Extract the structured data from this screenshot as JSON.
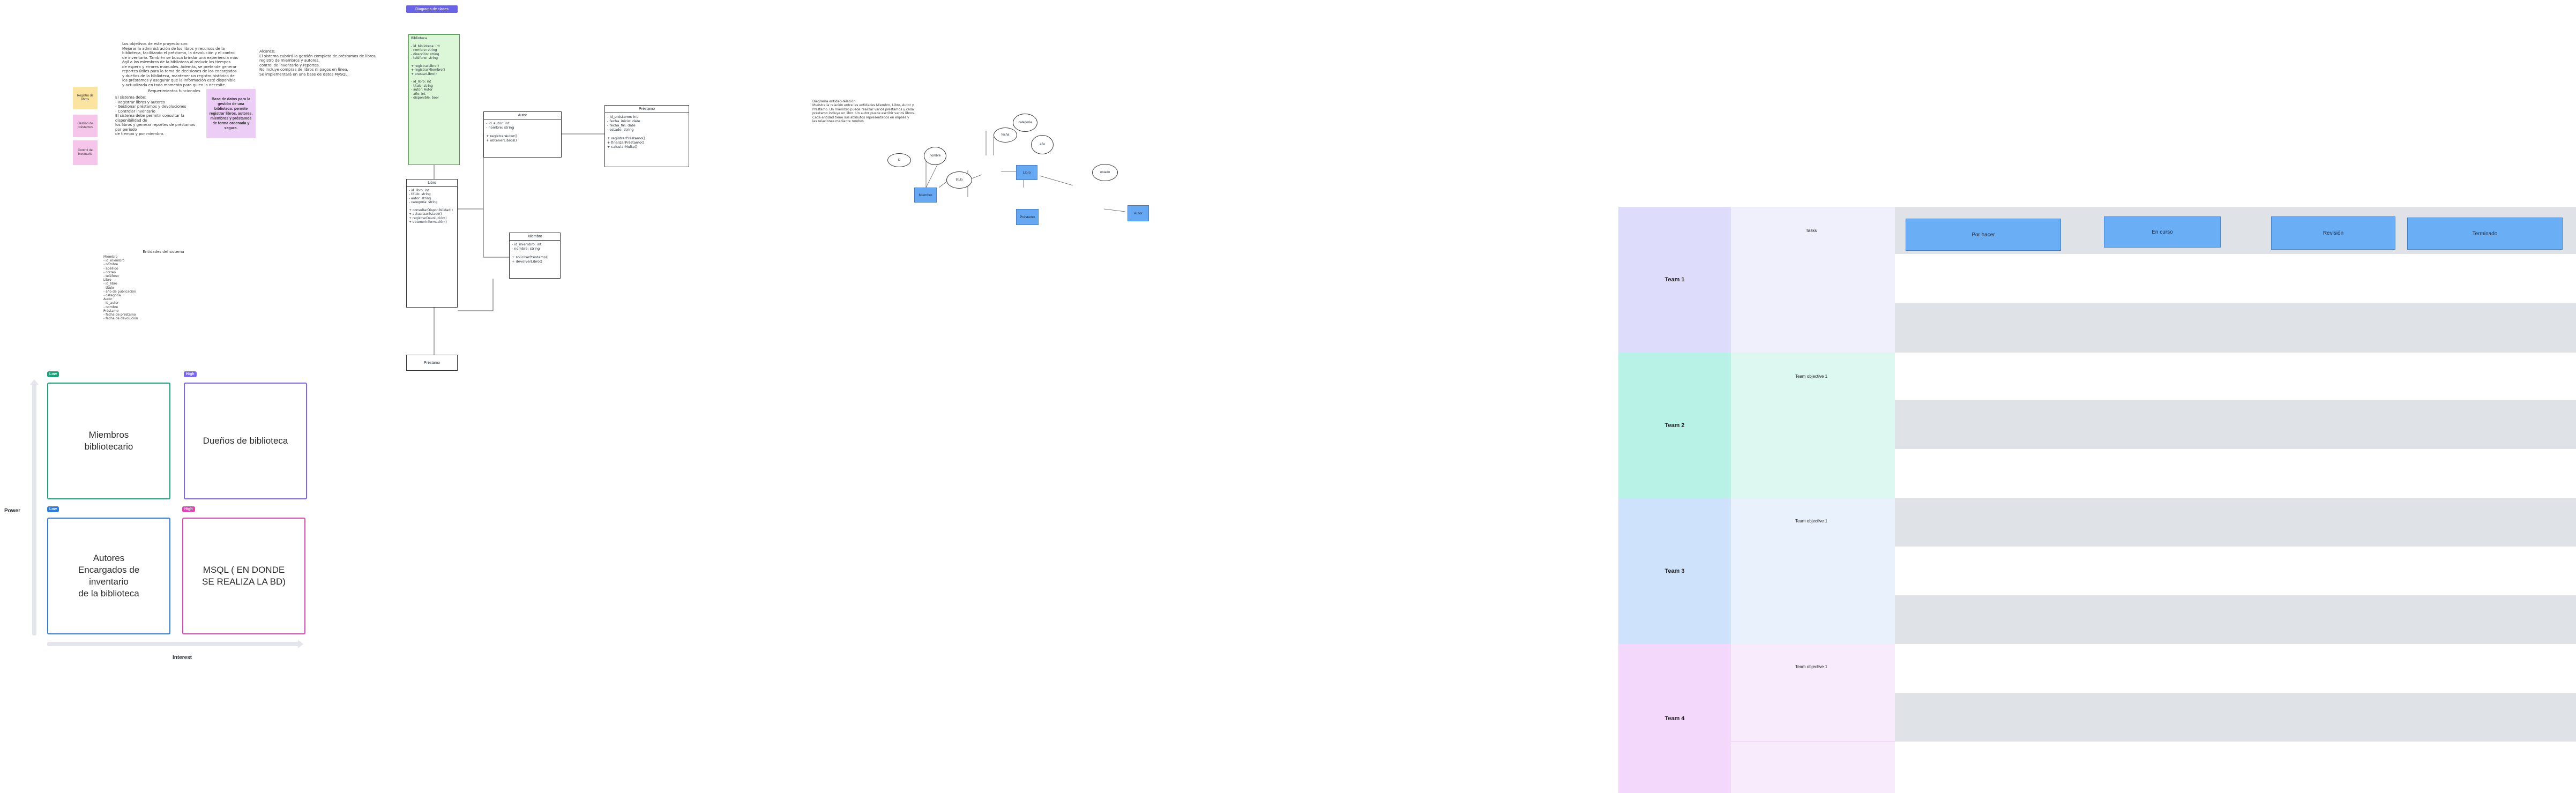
{
  "notes": {
    "intro": "Los objetivos de este proyecto son:\nMejorar la administración de los libros y recursos de la\nbiblioteca, facilitando el préstamo, la devolución y el control\nde inventario. También se busca brindar una experiencia más\nágil a los miembros de la biblioteca al reducir los tiempos\nde espera y errores manuales. Además, se pretende generar\nreportes útiles para la toma de decisiones de los encargados\ny dueños de la biblioteca, mantener un registro histórico de\nlos préstamos y asegurar que la información esté disponible\ny actualizada en todo momento para quien la necesite.",
    "requirements_title": "Requerimientos funcionales",
    "requirements": "El sistema debe:\n- Registrar libros y autores\n- Gestionar préstamos y devoluciones\n- Controlar inventario\nEl sistema debe permitir consultar la disponibilidad de\nlos libros y generar reportes de préstamos por periodo\nde tiempo y por miembro.",
    "scope": "Alcance:\nEl sistema cubrirá la gestión completa de préstamos de libros,\nregistro de miembros y autores,\ncontrol de inventario y reportes.\nNo incluye compras de libros ni pagos en línea.\nSe implementará en una base de datos MySQL.",
    "list_title": "Entidades del sistema",
    "list": "Miembro\n- id_miembro\n- nombre\n- apellido\n- correo\n- teléfono\nLibro\n- id_libro\n- título\n- año de publicación\n- categoría\nAutor\n- id_autor\n- nombre\nPréstamo\n- fecha de préstamo\n- fecha de devolución"
  },
  "stickies": [
    {
      "text": "Registro de libros",
      "color": "#fbe3a0"
    },
    {
      "text": "Gestión de préstamos",
      "color": "#f5c6ea"
    },
    {
      "text": "Control de inventario",
      "color": "#f5c6ea"
    }
  ],
  "callout": {
    "text": "Base de datos para la gestión de una biblioteca: permite registrar libros, autores, miembros y préstamos de forma ordenada y segura.",
    "color": "#eccdf6"
  },
  "stakeholders": {
    "y_axis": "Power",
    "x_axis": "Interest",
    "quadrants": [
      {
        "badge": "Low",
        "text": "Miembros\nbibliotecario",
        "color": "#18a37a"
      },
      {
        "badge": "High",
        "text": "Dueños de biblioteca",
        "color": "#7b68ee"
      },
      {
        "badge": "Low",
        "text": "Autores\nEncargados de\ninventario\nde la biblioteca",
        "color": "#2f7de1"
      },
      {
        "badge": "High",
        "text": "MSQL ( EN DONDE\nSE REALIZA LA BD)",
        "color": "#e344b5"
      }
    ]
  },
  "diagram": {
    "title_button": "Diagrama de clases",
    "green_box": "Biblioteca\n\n- id_biblioteca: int\n- nombre: string\n- dirección: string\n- teléfono: string\n\n+ registrarLibro()\n+ registrarMiembro()\n+ prestarLibro()\n\n- id_libro: int\n- título: string\n- autor: Autor\n- año: int\n- disponible: bool",
    "left_box_title": "Libro",
    "left_box": "- id_libro: int\n- título: string\n- autor: string\n- categoría: string\n\n+ consultarDisponibilidad()\n+ actualizarEstado()\n+ registrarDevolución()\n+ obtenerInformación()",
    "bottom_box": "Préstamo",
    "class_a_title": "Autor",
    "class_a": "- id_autor: int\n- nombre: string\n\n+ registrarAutor()\n+ obtenerLibros()",
    "class_b_title": "Miembro",
    "class_b": "- id_miembro: int\n- nombre: string\n\n+ solicitarPréstamo()\n+ devolverLibro()",
    "class_c_title": "Préstamo",
    "class_c": "- id_préstamo: int\n- fecha_inicio: date\n- fecha_fin: date\n- estado: string\n\n+ registrarPréstamo()\n+ finalizarPréstamo()\n+ calcularMulta()"
  },
  "flow": {
    "text": "Diagrama entidad-relación:\nMuestra la relación entre las entidades Miembro, Libro, Autor y\nPréstamo. Un miembro puede realizar varios préstamos y cada\npréstamo incluye un libro. Un autor puede escribir varios libros.\nCada entidad tiene sus atributos representados en elipses y\nlas relaciones mediante rombos.",
    "nodes": [
      {
        "label": "Miembro",
        "kind": "rect"
      },
      {
        "label": "Libro",
        "kind": "rect"
      },
      {
        "label": "Préstamo",
        "kind": "rect"
      },
      {
        "label": "Autor",
        "kind": "rect"
      },
      {
        "label": "id",
        "kind": "ellipse"
      },
      {
        "label": "nombre",
        "kind": "ellipse"
      },
      {
        "label": "título",
        "kind": "ellipse"
      },
      {
        "label": "fecha",
        "kind": "ellipse"
      },
      {
        "label": "categoría",
        "kind": "ellipse"
      },
      {
        "label": "año",
        "kind": "ellipse"
      },
      {
        "label": "estado",
        "kind": "ellipse"
      }
    ]
  },
  "kanban": {
    "top_label": "Tasks",
    "columns": [
      "Por hacer",
      "En curso",
      "Revisión",
      "Terminado"
    ],
    "teams": [
      {
        "name": "Team 1",
        "objective": "",
        "color": "#dedcfb",
        "light": "#f0effc"
      },
      {
        "name": "Team 2",
        "objective": "Team objective 1",
        "color": "#b8f2e6",
        "light": "#dcf8f1"
      },
      {
        "name": "Team 3",
        "objective": "Team objective 1",
        "color": "#cfe2fb",
        "light": "#e9f1fd"
      },
      {
        "name": "Team 4",
        "objective": "Team objective 1",
        "color": "#f3d8fb",
        "light": "#f8ebfc"
      }
    ]
  }
}
